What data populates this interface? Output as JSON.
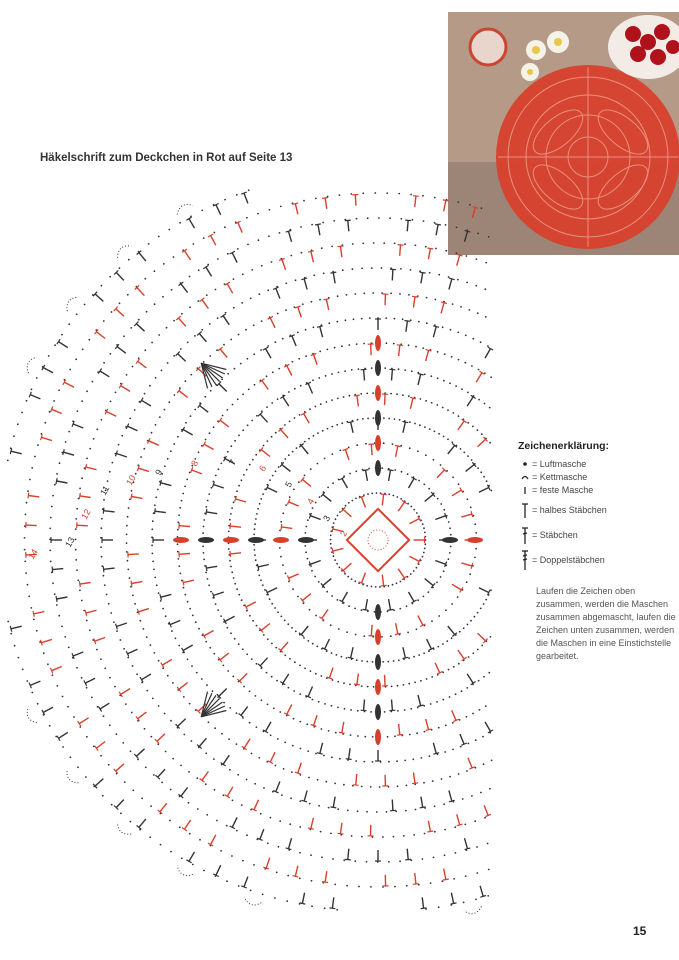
{
  "title": "Häkelschrift zum Deckchen in Rot auf Seite 13",
  "colors": {
    "red": "#d8402c",
    "dark": "#333333",
    "photo_bg": "#b89a86"
  },
  "chart": {
    "row_labels": [
      "2",
      "3",
      "4",
      "5",
      "6",
      "7",
      "8",
      "9",
      "10",
      "11",
      "12",
      "13",
      "14"
    ]
  },
  "legend": {
    "heading": "Zeichenerklärung:",
    "items": [
      {
        "icon": "dot-icon",
        "label": "= Luftmasche"
      },
      {
        "icon": "arc-icon",
        "label": "= Kettmasche"
      },
      {
        "icon": "short-line-icon",
        "label": "= feste Masche"
      },
      {
        "icon": "t-icon",
        "label": "= halbes Stäbchen"
      },
      {
        "icon": "cross-icon",
        "label": "= Stäbchen"
      },
      {
        "icon": "double-cross-icon",
        "label": "= Doppelstäbchen"
      }
    ],
    "note": "Laufen die Zeichen oben zusammen, werden die Maschen zusammen abgemascht, laufen die Zeichen unten zusammen, werden die Maschen in eine Einstichstelle gearbeitet."
  },
  "page_number": "15"
}
